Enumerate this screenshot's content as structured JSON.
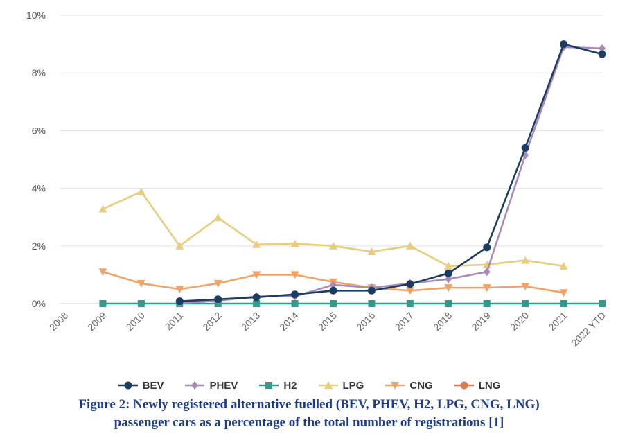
{
  "chart_data": {
    "type": "line",
    "title": "",
    "xlabel": "",
    "ylabel": "",
    "ylim": [
      0,
      10
    ],
    "yticks": [
      "0%",
      "2%",
      "4%",
      "6%",
      "8%",
      "10%"
    ],
    "categories": [
      "2008",
      "2009",
      "2010",
      "2011",
      "2012",
      "2013",
      "2014",
      "2015",
      "2016",
      "2017",
      "2018",
      "2019",
      "2020",
      "2021",
      "2022 YTD"
    ],
    "series": [
      {
        "name": "BEV",
        "color": "#1c3d63",
        "marker": "circle",
        "values": [
          null,
          null,
          null,
          0.08,
          0.15,
          0.22,
          0.32,
          0.45,
          0.45,
          0.68,
          1.05,
          1.95,
          5.4,
          9.0,
          8.65
        ]
      },
      {
        "name": "PHEV",
        "color": "#a88ab8",
        "marker": "diamond",
        "values": [
          null,
          null,
          null,
          0.02,
          0.1,
          0.25,
          0.25,
          0.65,
          0.55,
          0.7,
          0.85,
          1.1,
          5.15,
          8.9,
          8.85
        ]
      },
      {
        "name": "H2",
        "color": "#36998c",
        "marker": "square",
        "values": [
          null,
          0.0,
          0.0,
          0.0,
          0.0,
          0.0,
          0.0,
          0.0,
          0.0,
          0.0,
          0.0,
          0.0,
          0.0,
          0.0,
          0.0
        ]
      },
      {
        "name": "LPG",
        "color": "#e9cc7e",
        "marker": "triangle-up",
        "values": [
          null,
          3.28,
          3.88,
          2.0,
          2.98,
          2.05,
          2.08,
          2.0,
          1.8,
          2.0,
          1.3,
          1.35,
          1.5,
          1.3,
          null
        ]
      },
      {
        "name": "CNG",
        "color": "#f0a368",
        "marker": "triangle-down",
        "values": [
          null,
          1.1,
          0.7,
          0.5,
          0.7,
          1.0,
          1.0,
          0.75,
          0.55,
          0.45,
          0.55,
          0.55,
          0.6,
          0.38,
          null
        ]
      },
      {
        "name": "LNG",
        "color": "#e07b4e",
        "marker": "circle",
        "values": [
          null,
          null,
          null,
          null,
          null,
          null,
          null,
          null,
          null,
          null,
          null,
          null,
          null,
          null,
          null
        ]
      }
    ]
  },
  "caption": {
    "line1": "Figure 2: Newly registered alternative fuelled (BEV, PHEV, H2, LPG, CNG, LNG)",
    "line2": "passenger cars as a percentage of the total number of registrations [1]"
  }
}
